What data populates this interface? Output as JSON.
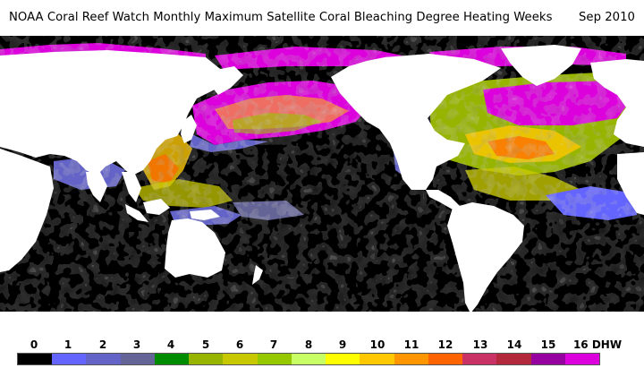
{
  "title": {
    "main": "NOAA Coral Reef Watch Monthly Maximum Satellite Coral Bleaching Degree Heating Weeks",
    "date": "Sep 2010"
  },
  "map": {
    "projection": "equirectangular",
    "land_color": "#ffffff",
    "ocean_no_stress_color": "#000000"
  },
  "legend": {
    "unit": "DHW",
    "ticks": [
      "0",
      "1",
      "2",
      "3",
      "4",
      "5",
      "6",
      "7",
      "8",
      "9",
      "10",
      "11",
      "12",
      "13",
      "14",
      "15",
      "16 DHW"
    ],
    "colors": [
      "#000000",
      "#6464ff",
      "#6464c8",
      "#646496",
      "#008c00",
      "#96b400",
      "#c8c800",
      "#96c800",
      "#c8ff64",
      "#ffff00",
      "#ffc800",
      "#ff9600",
      "#ff6400",
      "#c83264",
      "#b4283c",
      "#9600a0",
      "#dc00dc"
    ]
  }
}
